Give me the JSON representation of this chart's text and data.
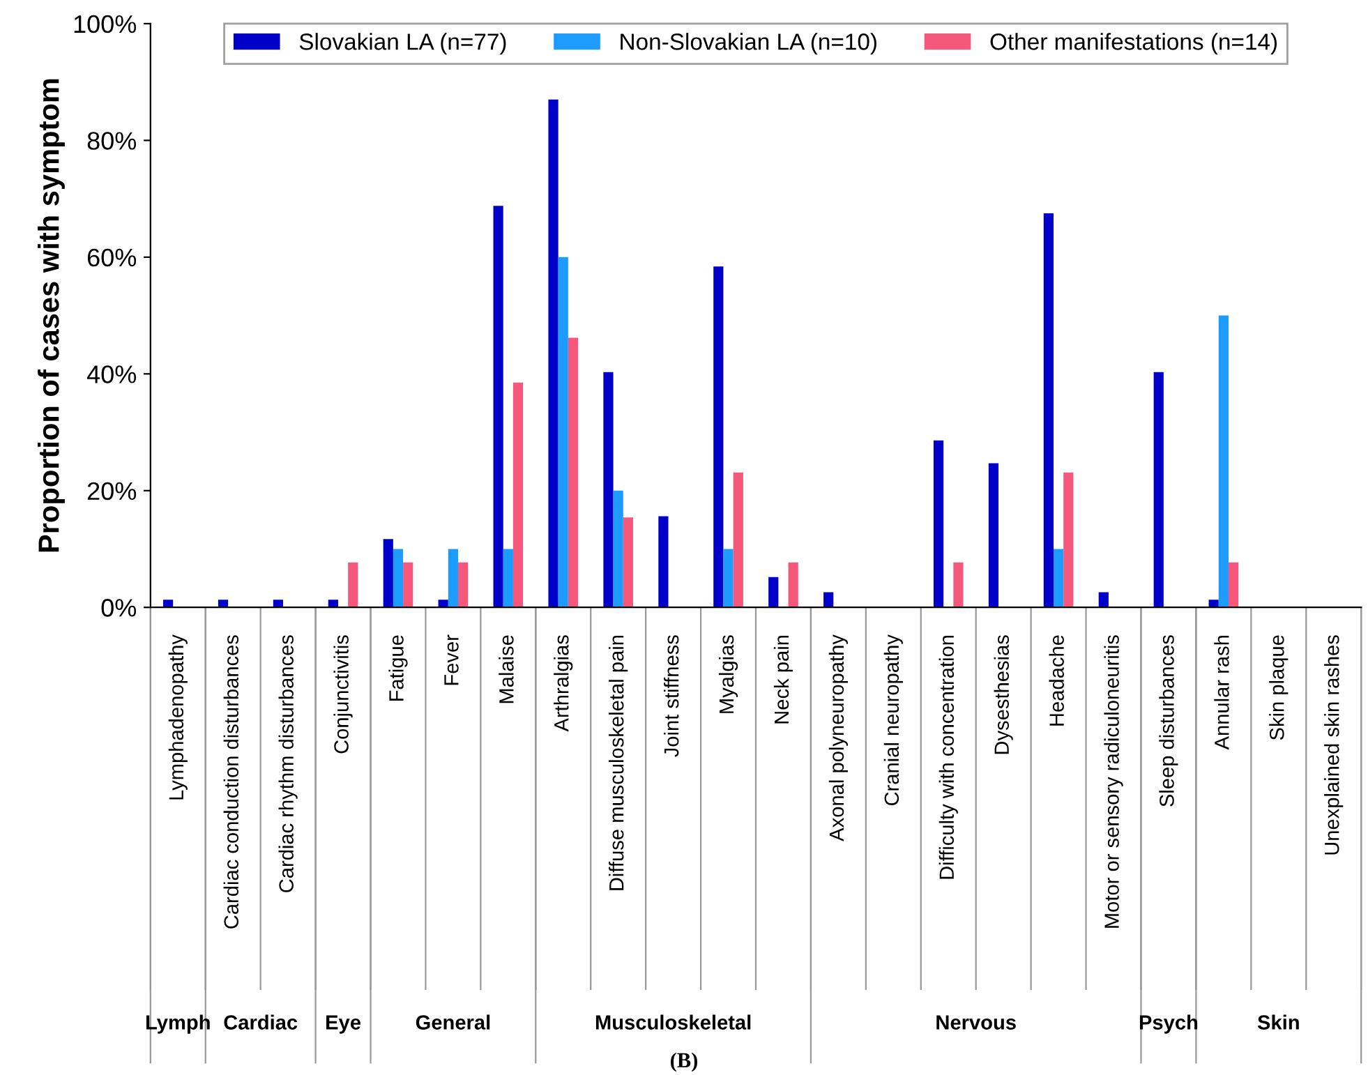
{
  "chart_data": {
    "type": "bar",
    "ylabel": "Proportion of cases with symptom",
    "categories": [
      "Lymphadenopathy",
      "Cardiac conduction disturbances",
      "Cardiac rhythm disturbances",
      "Conjunctivitis",
      "Fatigue",
      "Fever",
      "Malaise",
      "Arthralgias",
      "Diffuse musculoskeletal pain",
      "Joint stiffness",
      "Myalgias",
      "Neck pain",
      "Axonal polyneuropathy",
      "Cranial neuropathy",
      "Difficulty with concentration",
      "Dysesthesias",
      "Headache",
      "Motor or sensory radiculoneuritis",
      "Sleep disturbances",
      "Annular rash",
      "Skin plaque",
      "Unexplained skin rashes"
    ],
    "series": [
      {
        "name": "Slovakian LA (n=77)",
        "color": "#0000c8",
        "values": [
          1.3,
          1.3,
          1.3,
          1.3,
          11.7,
          1.3,
          68.8,
          87.0,
          40.3,
          15.6,
          58.4,
          5.2,
          2.6,
          0,
          28.6,
          24.7,
          67.5,
          2.6,
          40.3,
          1.3,
          0,
          0
        ]
      },
      {
        "name": "Non-Slovakian LA (n=10)",
        "color": "#1e9bff",
        "values": [
          0,
          0,
          0,
          0,
          10,
          10,
          10,
          60,
          20,
          0,
          10,
          0,
          0,
          0,
          0,
          0,
          10,
          0,
          0,
          50,
          0,
          0
        ]
      },
      {
        "name": "Other manifestations (n=14)",
        "color": "#f5587a",
        "values": [
          0,
          0,
          0,
          7.7,
          7.7,
          7.7,
          38.5,
          46.2,
          15.4,
          0,
          23.1,
          7.7,
          0,
          0,
          7.7,
          0,
          23.1,
          0,
          0,
          7.7,
          0,
          0
        ]
      }
    ],
    "ylim": [
      0,
      100
    ],
    "yticks": [
      {
        "value": 0,
        "label": "0%"
      },
      {
        "value": 20,
        "label": "20%"
      },
      {
        "value": 40,
        "label": "40%"
      },
      {
        "value": 60,
        "label": "60%"
      },
      {
        "value": 80,
        "label": "80%"
      },
      {
        "value": 100,
        "label": "100%"
      }
    ],
    "grid": false,
    "legend": "top",
    "annotations": [
      "Lymph",
      "Cardiac",
      "Eye",
      "General",
      "Musculoskeletal",
      "Nervous",
      "Psych",
      "Skin",
      "(B)"
    ]
  }
}
